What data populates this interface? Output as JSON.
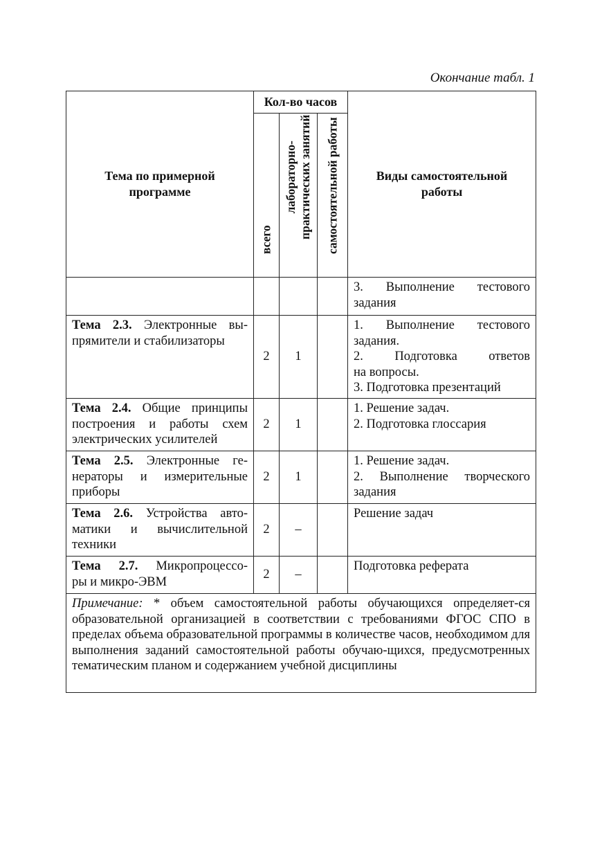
{
  "caption": "Окончание табл. 1",
  "header": {
    "topic": [
      "Тема по примерной",
      "программе"
    ],
    "hours": "Кол-во часов",
    "total": "всего",
    "lab": [
      "лабораторно-",
      "практических занятий"
    ],
    "self": "самостоятельной работы",
    "types": [
      "Виды самостоятельной",
      "работы"
    ]
  },
  "rows": [
    {
      "title": "",
      "lines": [],
      "total": "",
      "lab": "",
      "self": "",
      "types": [
        "3. Выполнение тестового",
        "задания"
      ]
    },
    {
      "title": "Тема 2.3.",
      "lines": [
        " Электронные вы-",
        "прямители и стабилизаторы"
      ],
      "total": "2",
      "lab": "1",
      "self": "",
      "types": [
        "1. Выполнение тестового",
        "задания.",
        "2. Подготовка ответов",
        "на вопросы.",
        "3. Подготовка презентаций"
      ]
    },
    {
      "title": "Тема 2.4.",
      "lines": [
        " Общие принципы",
        "построения и работы схем",
        "электрических усилителей"
      ],
      "total": "2",
      "lab": "1",
      "self": "",
      "types": [
        "1. Решение задач.",
        "2. Подготовка глоссария"
      ]
    },
    {
      "title": "Тема 2.5.",
      "lines": [
        " Электронные ге-",
        "нераторы и измерительные",
        "приборы"
      ],
      "total": "2",
      "lab": "1",
      "self": "",
      "types": [
        "1. Решение задач.",
        "2. Выполнение творческого",
        "задания"
      ]
    },
    {
      "title": "Тема 2.6.",
      "lines": [
        " Устройства авто-",
        "матики и вычислительной",
        "техники"
      ],
      "total": "2",
      "lab": "–",
      "self": "",
      "types": [
        "Решение задач"
      ]
    },
    {
      "title": "Тема 2.7.",
      "lines": [
        " Микропроцессо-",
        "ры и микро-ЭВМ"
      ],
      "total": "2",
      "lab": "–",
      "self": "",
      "types": [
        "Подготовка реферата"
      ]
    }
  ],
  "note": {
    "label": "Примечание:",
    "text": " * объем самостоятельной работы обучающихся определяет-ся образовательной организацией в соответствии с требованиями ФГОС СПО в пределах объема образовательной программы в количестве часов, необходимом для выполнения заданий самостоятельной работы обучаю-щихся, предусмотренных тематическим планом и содержанием учебной дисциплины"
  }
}
